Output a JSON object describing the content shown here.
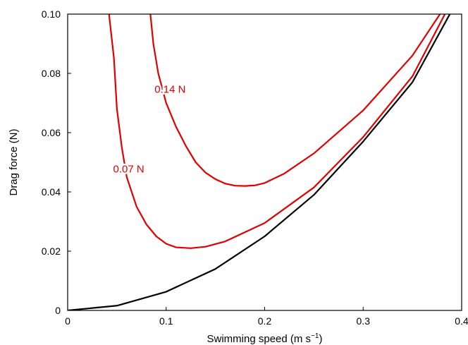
{
  "chart_data": {
    "type": "line",
    "title": "",
    "xlabel": "Swimming speed (m s",
    "xlabel_sup": "−1",
    "xlabel_end": ")",
    "ylabel": "Drag force (N)",
    "xlim": [
      0,
      0.4
    ],
    "ylim": [
      0,
      0.1
    ],
    "x_ticks": [
      0,
      0.1,
      0.2,
      0.3,
      0.4
    ],
    "x_tick_labels": [
      "0",
      "0.1",
      "0.2",
      "0.3",
      "0.4"
    ],
    "y_ticks": [
      0,
      0.02,
      0.04,
      0.06,
      0.08,
      0.1
    ],
    "y_tick_labels": [
      "0",
      "0.02",
      "0.04",
      "0.06",
      "0.08",
      "0.10"
    ],
    "grid": false,
    "legend": "none",
    "series": [
      {
        "color": "#000000",
        "points": [
          [
            0.0,
            0.0
          ],
          [
            0.05,
            0.0016
          ],
          [
            0.1,
            0.0063
          ],
          [
            0.15,
            0.014
          ],
          [
            0.2,
            0.025
          ],
          [
            0.25,
            0.039
          ],
          [
            0.3,
            0.057
          ],
          [
            0.35,
            0.077
          ],
          [
            0.388,
            0.1
          ]
        ]
      },
      {
        "name": "0.07 N",
        "color": "#e00000",
        "points": [
          [
            0.042,
            0.1
          ],
          [
            0.047,
            0.085
          ],
          [
            0.05,
            0.068
          ],
          [
            0.055,
            0.055
          ],
          [
            0.06,
            0.045
          ],
          [
            0.07,
            0.035
          ],
          [
            0.08,
            0.029
          ],
          [
            0.09,
            0.025
          ],
          [
            0.1,
            0.0225
          ],
          [
            0.11,
            0.0213
          ],
          [
            0.125,
            0.021
          ],
          [
            0.14,
            0.0215
          ],
          [
            0.16,
            0.0233
          ],
          [
            0.2,
            0.0295
          ],
          [
            0.25,
            0.0415
          ],
          [
            0.3,
            0.0585
          ],
          [
            0.35,
            0.079
          ],
          [
            0.383,
            0.1
          ]
        ]
      },
      {
        "name": "0.14 N",
        "color": "#e00000",
        "points": [
          [
            0.084,
            0.1
          ],
          [
            0.087,
            0.09
          ],
          [
            0.092,
            0.08
          ],
          [
            0.1,
            0.07
          ],
          [
            0.11,
            0.062
          ],
          [
            0.12,
            0.0555
          ],
          [
            0.13,
            0.05
          ],
          [
            0.14,
            0.0465
          ],
          [
            0.15,
            0.0443
          ],
          [
            0.16,
            0.0428
          ],
          [
            0.17,
            0.0421
          ],
          [
            0.18,
            0.042
          ],
          [
            0.19,
            0.0422
          ],
          [
            0.2,
            0.043
          ],
          [
            0.22,
            0.0462
          ],
          [
            0.25,
            0.053
          ],
          [
            0.3,
            0.0675
          ],
          [
            0.35,
            0.086
          ],
          [
            0.378,
            0.1
          ]
        ]
      }
    ],
    "annotations": [
      {
        "text": "0.14 N",
        "x": 0.104,
        "y": 0.0735,
        "color": "#e00000"
      },
      {
        "text": "0.07 N",
        "x": 0.062,
        "y": 0.0465,
        "color": "#e00000"
      }
    ]
  }
}
